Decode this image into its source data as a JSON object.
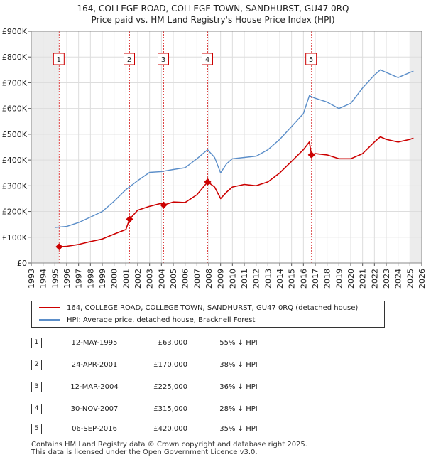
{
  "chart_data": {
    "type": "line",
    "title": "164, COLLEGE ROAD, COLLEGE TOWN, SANDHURST, GU47 0RQ",
    "subtitle": "Price paid vs. HM Land Registry's House Price Index (HPI)",
    "xlabel": "",
    "ylabel": "",
    "xlim": [
      1993,
      2026
    ],
    "ylim": [
      0,
      900000
    ],
    "y_ticks": [
      {
        "value": 0,
        "label": "£0"
      },
      {
        "value": 100000,
        "label": "£100K"
      },
      {
        "value": 200000,
        "label": "£200K"
      },
      {
        "value": 300000,
        "label": "£300K"
      },
      {
        "value": 400000,
        "label": "£400K"
      },
      {
        "value": 500000,
        "label": "£500K"
      },
      {
        "value": 600000,
        "label": "£600K"
      },
      {
        "value": 700000,
        "label": "£700K"
      },
      {
        "value": 800000,
        "label": "£800K"
      },
      {
        "value": 900000,
        "label": "£900K"
      }
    ],
    "x_ticks": [
      "1993",
      "1994",
      "1995",
      "1996",
      "1997",
      "1998",
      "1999",
      "2000",
      "2001",
      "2002",
      "2003",
      "2004",
      "2005",
      "2006",
      "2007",
      "2008",
      "2009",
      "2010",
      "2011",
      "2012",
      "2013",
      "2014",
      "2015",
      "2016",
      "2017",
      "2018",
      "2019",
      "2020",
      "2021",
      "2022",
      "2023",
      "2024",
      "2025",
      "2026"
    ],
    "grid": true,
    "shaded_ranges": [
      [
        1993,
        1995.36
      ],
      [
        2025.0,
        2026
      ]
    ],
    "series": [
      {
        "name": "164, COLLEGE ROAD, COLLEGE TOWN, SANDHURST, GU47 0RQ (detached house)",
        "color": "#cc0000",
        "x": [
          1995.36,
          1996,
          1997,
          1998,
          1999,
          2000,
          2001.0,
          2001.31,
          2002,
          2003,
          2004.0,
          2004.19,
          2005,
          2006,
          2007,
          2007.91,
          2008.5,
          2009.0,
          2009.5,
          2010,
          2011,
          2012,
          2013,
          2014,
          2015,
          2016.0,
          2016.5,
          2016.68,
          2017,
          2018,
          2019,
          2020,
          2021,
          2022,
          2022.5,
          2023,
          2024,
          2025,
          2025.3
        ],
        "y": [
          63000,
          65000,
          72000,
          83000,
          93000,
          112000,
          130000,
          170000,
          205000,
          220000,
          232000,
          225000,
          237000,
          235000,
          265000,
          315000,
          295000,
          250000,
          275000,
          295000,
          305000,
          300000,
          315000,
          350000,
          395000,
          440000,
          470000,
          420000,
          425000,
          420000,
          405000,
          405000,
          425000,
          470000,
          490000,
          480000,
          470000,
          480000,
          485000
        ]
      },
      {
        "name": "HPI: Average price, detached house, Bracknell Forest",
        "color": "#5b8ec9",
        "x": [
          1995.0,
          1996,
          1997,
          1998,
          1999,
          2000,
          2001,
          2002,
          2003,
          2004,
          2005,
          2006,
          2007,
          2007.9,
          2008.5,
          2009.0,
          2009.5,
          2010,
          2011,
          2012,
          2013,
          2014,
          2015,
          2016,
          2016.5,
          2017,
          2018,
          2019,
          2020,
          2021,
          2022,
          2022.5,
          2023,
          2024,
          2025,
          2025.3
        ],
        "y": [
          138000,
          142000,
          157000,
          178000,
          200000,
          240000,
          285000,
          320000,
          352000,
          355000,
          363000,
          370000,
          405000,
          440000,
          410000,
          350000,
          385000,
          405000,
          410000,
          415000,
          440000,
          480000,
          530000,
          580000,
          650000,
          640000,
          625000,
          600000,
          620000,
          680000,
          730000,
          750000,
          740000,
          720000,
          740000,
          745000
        ]
      }
    ],
    "markers": [
      {
        "label": "1",
        "x": 1995.36,
        "y": 63000
      },
      {
        "label": "2",
        "x": 2001.31,
        "y": 170000
      },
      {
        "label": "3",
        "x": 2004.19,
        "y": 225000
      },
      {
        "label": "4",
        "x": 2007.91,
        "y": 315000
      },
      {
        "label": "5",
        "x": 2016.68,
        "y": 420000
      }
    ]
  },
  "legend": {
    "property_label": "164, COLLEGE ROAD, COLLEGE TOWN, SANDHURST, GU47 0RQ (detached house)",
    "hpi_label": "HPI: Average price, detached house, Bracknell Forest"
  },
  "transactions": [
    {
      "num": "1",
      "date": "12-MAY-1995",
      "price": "£63,000",
      "hpi": "55% ↓ HPI"
    },
    {
      "num": "2",
      "date": "24-APR-2001",
      "price": "£170,000",
      "hpi": "38% ↓ HPI"
    },
    {
      "num": "3",
      "date": "12-MAR-2004",
      "price": "£225,000",
      "hpi": "36% ↓ HPI"
    },
    {
      "num": "4",
      "date": "30-NOV-2007",
      "price": "£315,000",
      "hpi": "28% ↓ HPI"
    },
    {
      "num": "5",
      "date": "06-SEP-2016",
      "price": "£420,000",
      "hpi": "35% ↓ HPI"
    }
  ],
  "footer": {
    "line1": "Contains HM Land Registry data © Crown copyright and database right 2025.",
    "line2": "This data is licensed under the Open Government Licence v3.0."
  }
}
